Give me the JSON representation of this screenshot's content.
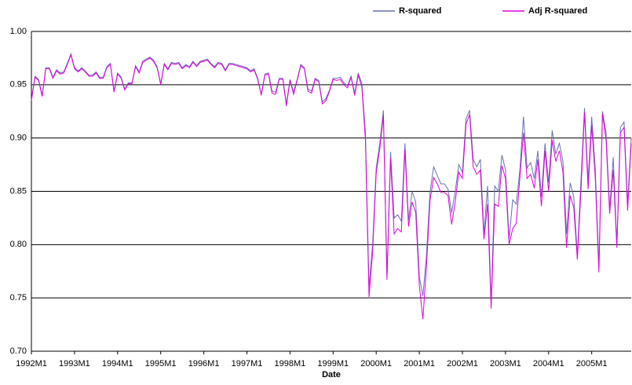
{
  "chart_data": {
    "type": "line",
    "x_label": "Date",
    "categories": [
      "1992M1",
      null,
      null,
      null,
      null,
      null,
      null,
      null,
      null,
      null,
      null,
      null,
      "1993M1",
      null,
      null,
      null,
      null,
      null,
      null,
      null,
      null,
      null,
      null,
      null,
      "1994M1",
      null,
      null,
      null,
      null,
      null,
      null,
      null,
      null,
      null,
      null,
      null,
      "1995M1",
      null,
      null,
      null,
      null,
      null,
      null,
      null,
      null,
      null,
      null,
      null,
      "1996M1",
      null,
      null,
      null,
      null,
      null,
      null,
      null,
      null,
      null,
      null,
      null,
      "1997M1",
      null,
      null,
      null,
      null,
      null,
      null,
      null,
      null,
      null,
      null,
      null,
      "1998M1",
      null,
      null,
      null,
      null,
      null,
      null,
      null,
      null,
      null,
      null,
      null,
      "1999M1",
      null,
      null,
      null,
      null,
      null,
      null,
      null,
      null,
      null,
      null,
      null,
      "2000M1",
      null,
      null,
      null,
      null,
      null,
      null,
      null,
      null,
      null,
      null,
      null,
      "2001M1",
      null,
      null,
      null,
      null,
      null,
      null,
      null,
      null,
      null,
      null,
      null,
      "2002M1",
      null,
      null,
      null,
      null,
      null,
      null,
      null,
      null,
      null,
      null,
      null,
      "2003M1",
      null,
      null,
      null,
      null,
      null,
      null,
      null,
      null,
      null,
      null,
      null,
      "2004M1",
      null,
      null,
      null,
      null,
      null,
      null,
      null,
      null,
      null,
      null,
      null,
      "2005M1",
      null,
      null,
      null,
      null,
      null,
      null,
      null,
      null,
      null,
      null,
      null
    ],
    "series": [
      {
        "name": "R-squared",
        "color": "#6670b0",
        "values": [
          0.936,
          0.958,
          0.955,
          0.94,
          0.966,
          0.966,
          0.957,
          0.964,
          0.961,
          0.962,
          0.97,
          0.979,
          0.966,
          0.963,
          0.966,
          0.963,
          0.959,
          0.959,
          0.962,
          0.957,
          0.957,
          0.967,
          0.97,
          0.944,
          0.961,
          0.957,
          0.946,
          0.952,
          0.952,
          0.968,
          0.962,
          0.972,
          0.974,
          0.976,
          0.973,
          0.967,
          0.951,
          0.97,
          0.965,
          0.971,
          0.97,
          0.971,
          0.966,
          0.969,
          0.967,
          0.972,
          0.968,
          0.972,
          0.973,
          0.974,
          0.97,
          0.967,
          0.971,
          0.97,
          0.964,
          0.97,
          0.97,
          0.969,
          0.968,
          0.967,
          0.966,
          0.963,
          0.965,
          0.956,
          0.941,
          0.96,
          0.961,
          0.944,
          0.943,
          0.956,
          0.956,
          0.932,
          0.955,
          0.943,
          0.955,
          0.969,
          0.966,
          0.946,
          0.944,
          0.956,
          0.954,
          0.934,
          0.937,
          0.945,
          0.956,
          0.956,
          0.957,
          0.952,
          0.949,
          0.958,
          0.942,
          0.961,
          0.951,
          0.905,
          0.76,
          0.8,
          0.872,
          0.895,
          0.926,
          0.77,
          0.887,
          0.825,
          0.828,
          0.822,
          0.895,
          0.823,
          0.85,
          0.84,
          0.77,
          0.752,
          0.79,
          0.85,
          0.873,
          0.865,
          0.857,
          0.857,
          0.852,
          0.83,
          0.85,
          0.875,
          0.868,
          0.918,
          0.926,
          0.88,
          0.873,
          0.88,
          0.81,
          0.855,
          0.745,
          0.855,
          0.85,
          0.884,
          0.87,
          0.805,
          0.842,
          0.838,
          0.87,
          0.92,
          0.872,
          0.877,
          0.862,
          0.888,
          0.845,
          0.895,
          0.858,
          0.907,
          0.885,
          0.895,
          0.878,
          0.81,
          0.858,
          0.845,
          0.79,
          0.86,
          0.928,
          0.86,
          0.92,
          0.87,
          0.78,
          0.925,
          0.905,
          0.833,
          0.882,
          0.8,
          0.91,
          0.915,
          0.838,
          0.9
        ]
      },
      {
        "name": "Adj R-squared",
        "color": "#e000e0",
        "values": [
          0.935,
          0.957,
          0.954,
          0.939,
          0.965,
          0.965,
          0.956,
          0.963,
          0.96,
          0.961,
          0.969,
          0.978,
          0.965,
          0.962,
          0.965,
          0.962,
          0.958,
          0.958,
          0.961,
          0.956,
          0.956,
          0.966,
          0.969,
          0.943,
          0.96,
          0.956,
          0.945,
          0.951,
          0.951,
          0.967,
          0.961,
          0.971,
          0.973,
          0.975,
          0.972,
          0.966,
          0.95,
          0.969,
          0.964,
          0.97,
          0.969,
          0.97,
          0.965,
          0.968,
          0.966,
          0.971,
          0.967,
          0.971,
          0.972,
          0.973,
          0.969,
          0.966,
          0.97,
          0.969,
          0.963,
          0.969,
          0.969,
          0.968,
          0.967,
          0.966,
          0.965,
          0.962,
          0.964,
          0.955,
          0.94,
          0.959,
          0.96,
          0.942,
          0.941,
          0.955,
          0.955,
          0.93,
          0.954,
          0.941,
          0.954,
          0.968,
          0.965,
          0.944,
          0.942,
          0.955,
          0.953,
          0.932,
          0.935,
          0.944,
          0.955,
          0.954,
          0.955,
          0.95,
          0.947,
          0.957,
          0.94,
          0.959,
          0.948,
          0.898,
          0.751,
          0.793,
          0.867,
          0.89,
          0.921,
          0.767,
          0.881,
          0.81,
          0.815,
          0.812,
          0.889,
          0.817,
          0.84,
          0.83,
          0.762,
          0.73,
          0.78,
          0.842,
          0.863,
          0.857,
          0.849,
          0.849,
          0.846,
          0.819,
          0.84,
          0.868,
          0.862,
          0.913,
          0.922,
          0.873,
          0.866,
          0.87,
          0.805,
          0.838,
          0.74,
          0.838,
          0.836,
          0.874,
          0.862,
          0.8,
          0.815,
          0.82,
          0.863,
          0.905,
          0.862,
          0.866,
          0.853,
          0.88,
          0.836,
          0.888,
          0.85,
          0.898,
          0.878,
          0.888,
          0.868,
          0.797,
          0.846,
          0.835,
          0.786,
          0.85,
          0.924,
          0.852,
          0.912,
          0.862,
          0.774,
          0.923,
          0.898,
          0.829,
          0.87,
          0.797,
          0.905,
          0.91,
          0.832,
          0.895
        ]
      }
    ],
    "ylim": [
      0.7,
      1.0
    ],
    "yticks": [
      {
        "value": 0.7,
        "label": "0.70"
      },
      0.75,
      {
        "value": 0.8,
        "label": "0.80"
      },
      0.85,
      {
        "value": 0.9,
        "label": "0.90"
      },
      0.95,
      {
        "value": 1.0,
        "label": "1.00"
      }
    ],
    "grid": true,
    "legend": "top-right"
  }
}
